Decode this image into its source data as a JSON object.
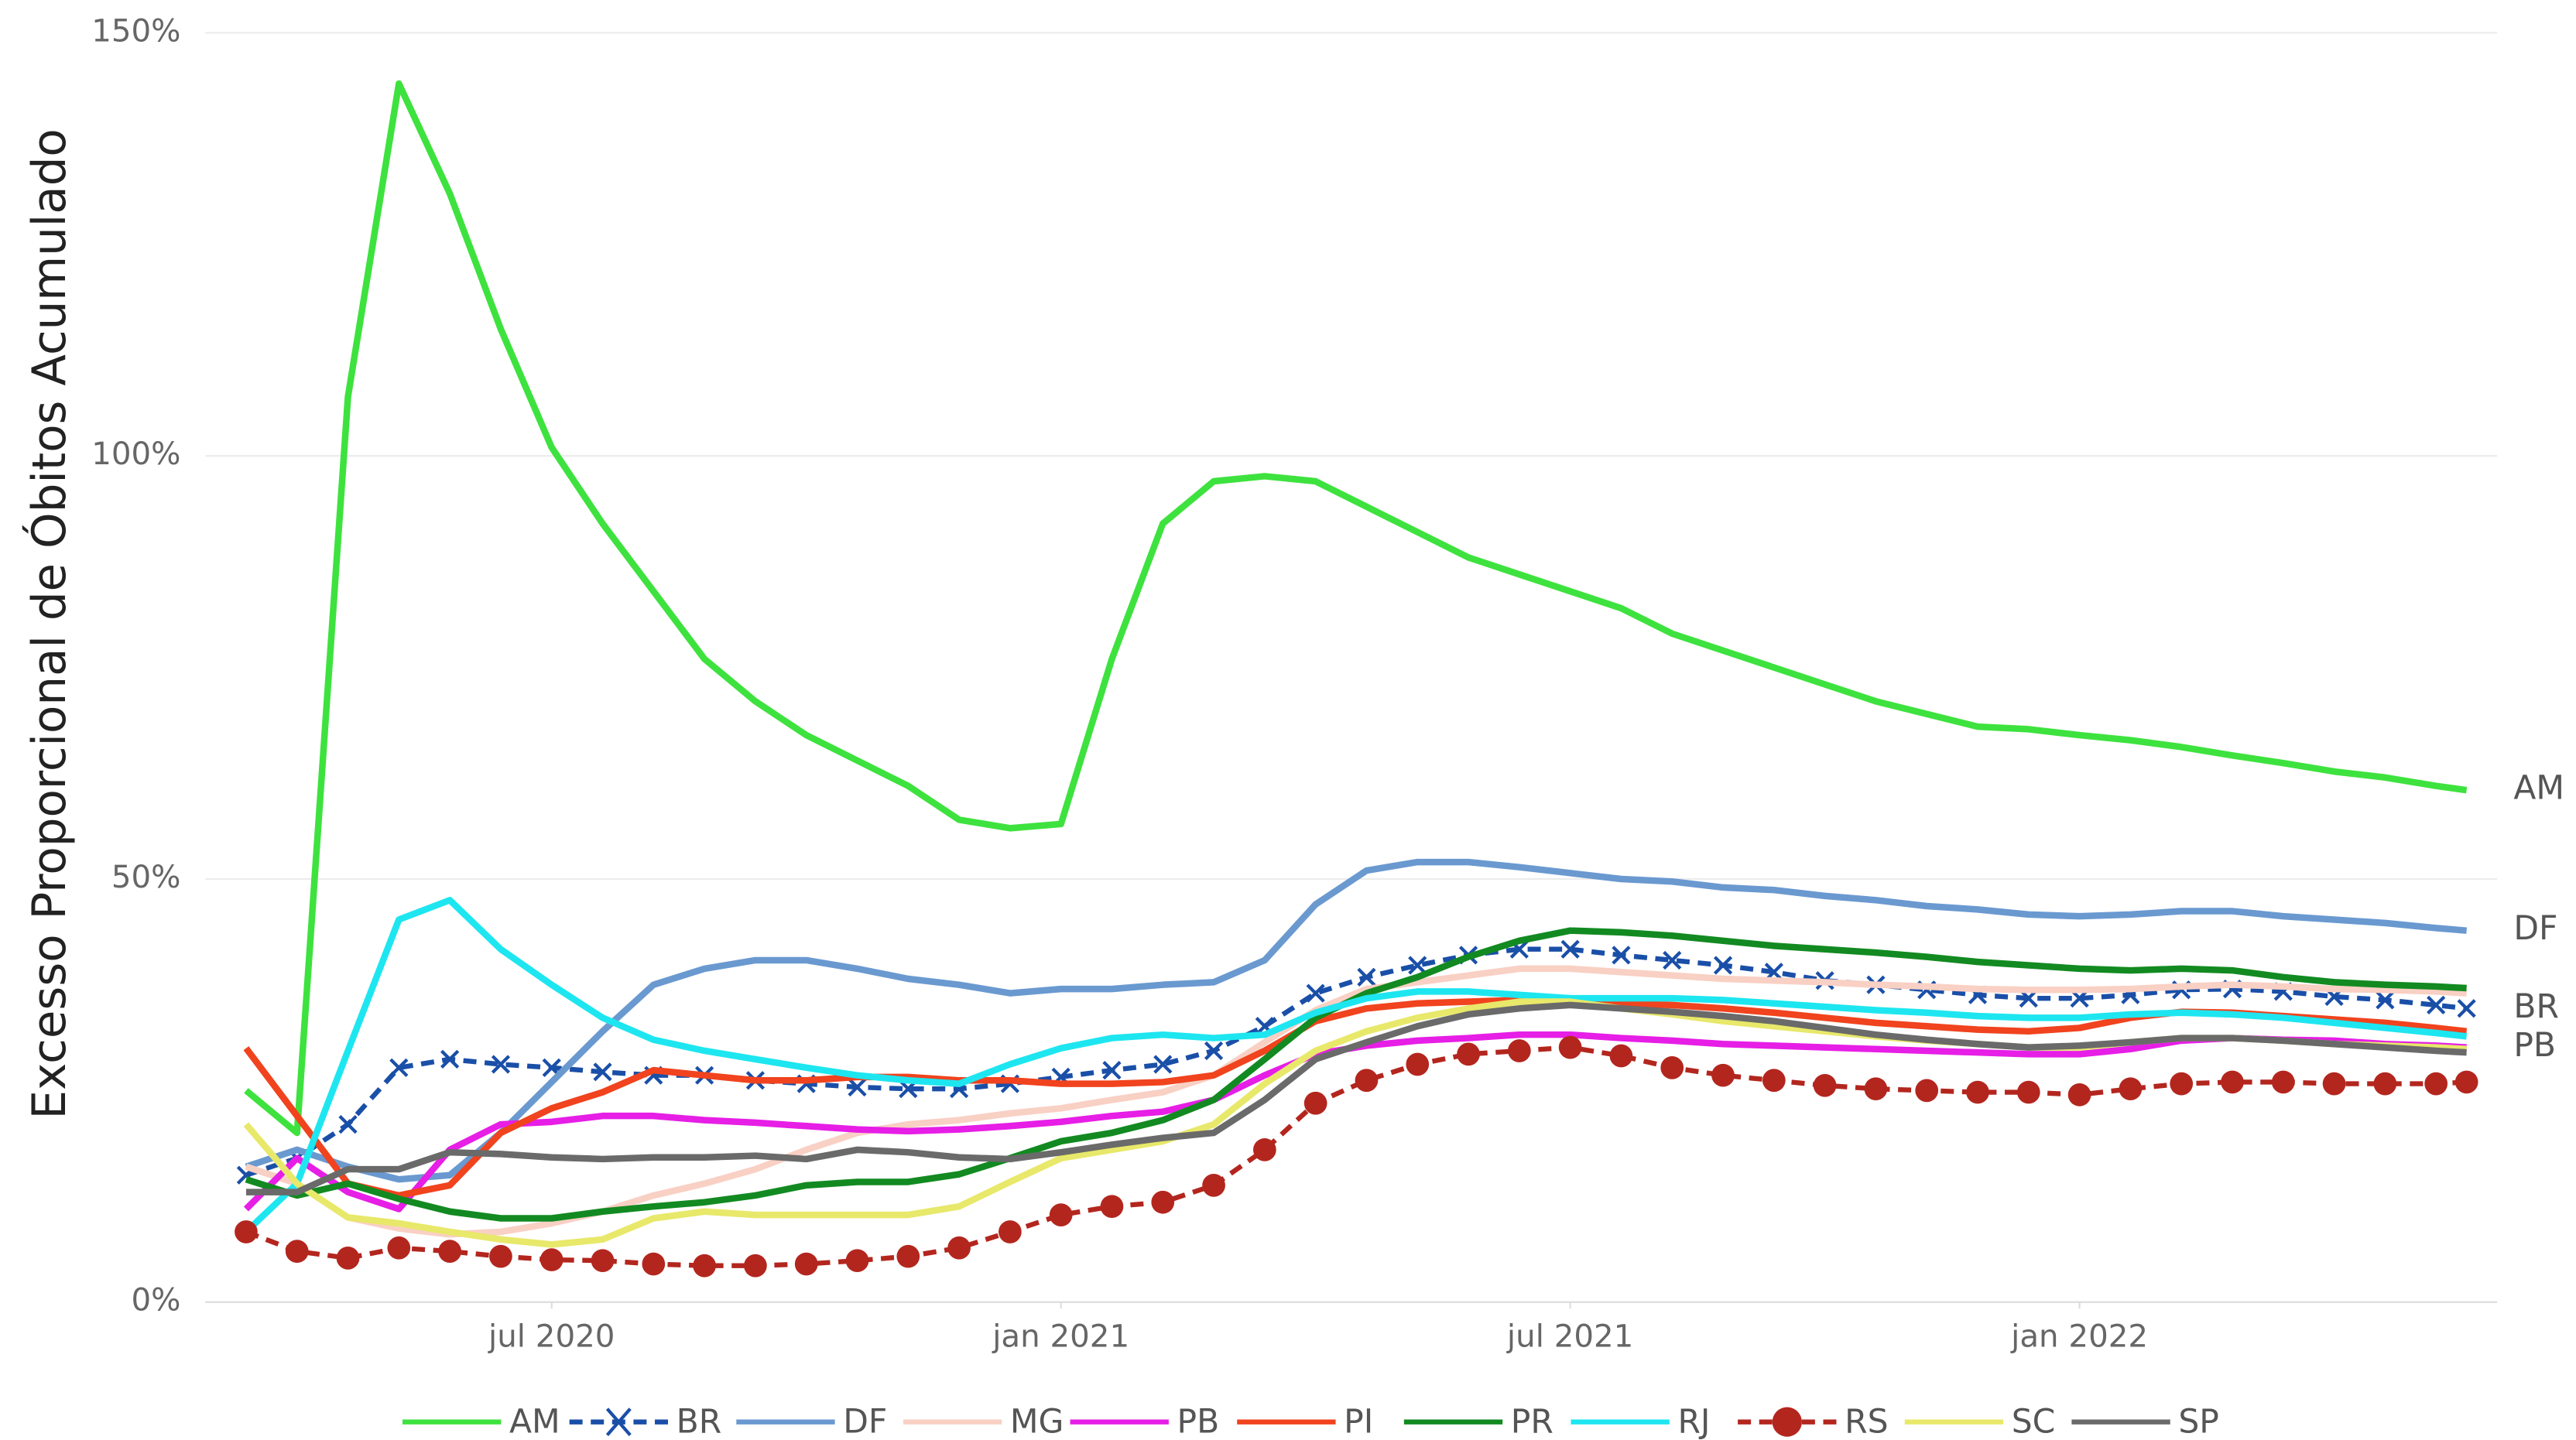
{
  "chart_data": {
    "type": "line",
    "ylabel": "Excesso Proporcional de Óbitos Acumulado",
    "xlim": [
      2020.16,
      2022.41
    ],
    "xticks": [
      {
        "value": 2020.5,
        "label": "jul 2020"
      },
      {
        "value": 2021.0,
        "label": "jan 2021"
      },
      {
        "value": 2021.5,
        "label": "jul 2021"
      },
      {
        "value": 2022.0,
        "label": "jan 2022"
      }
    ],
    "ylim": [
      0,
      150
    ],
    "yticks": [
      {
        "value": 0,
        "label": "0%"
      },
      {
        "value": 50,
        "label": "50%"
      },
      {
        "value": 100,
        "label": "100%"
      },
      {
        "value": 150,
        "label": "150%"
      }
    ],
    "grid": true,
    "legend": "bottom",
    "x": [
      2020.2,
      2020.25,
      2020.3,
      2020.35,
      2020.4,
      2020.45,
      2020.5,
      2020.55,
      2020.6,
      2020.65,
      2020.7,
      2020.75,
      2020.8,
      2020.85,
      2020.9,
      2020.95,
      2021.0,
      2021.05,
      2021.1,
      2021.15,
      2021.2,
      2021.25,
      2021.3,
      2021.35,
      2021.4,
      2021.45,
      2021.5,
      2021.55,
      2021.6,
      2021.65,
      2021.7,
      2021.75,
      2021.8,
      2021.85,
      2021.9,
      2021.95,
      2022.0,
      2022.05,
      2022.1,
      2022.15,
      2022.2,
      2022.25,
      2022.3,
      2022.35,
      2022.38
    ],
    "series": [
      {
        "name": "AM",
        "color": "#3ee23e",
        "end_label": true,
        "values": [
          25,
          20,
          107,
          144,
          131,
          115,
          101,
          92,
          84,
          76,
          71,
          67,
          64,
          61,
          57,
          56,
          56.5,
          76,
          92,
          97,
          97.6,
          97,
          94,
          91,
          88,
          86,
          84,
          82,
          79,
          77,
          75,
          73,
          71,
          69.5,
          68,
          67.7,
          67,
          66.4,
          65.6,
          64.6,
          63.7,
          62.7,
          62,
          61,
          60.5
        ]
      },
      {
        "name": "BR",
        "color": "#1a4fa8",
        "dash": true,
        "marker": "x",
        "end_label": true,
        "values": [
          15,
          17,
          21,
          27.7,
          28.7,
          28.1,
          27.7,
          27.2,
          26.8,
          26.8,
          26.2,
          25.8,
          25.4,
          25.2,
          25.2,
          25.8,
          26.6,
          27.4,
          28.1,
          29.7,
          32.6,
          36.5,
          38.4,
          39.8,
          41,
          41.7,
          41.7,
          41,
          40.4,
          39.8,
          39,
          38,
          37.5,
          36.9,
          36.3,
          35.9,
          35.9,
          36.3,
          36.9,
          37,
          36.7,
          36.1,
          35.7,
          35.1,
          34.7
        ]
      },
      {
        "name": "DF",
        "color": "#6a99d0",
        "end_label": true,
        "values": [
          16,
          18,
          16,
          14.5,
          15,
          20,
          26,
          32,
          37.5,
          39.4,
          40.4,
          40.4,
          39.4,
          38.2,
          37.5,
          36.5,
          37,
          37,
          37.5,
          37.8,
          40.4,
          47,
          51,
          52,
          52,
          51.4,
          50.7,
          50,
          49.7,
          49,
          48.7,
          48,
          47.5,
          46.8,
          46.4,
          45.8,
          45.6,
          45.8,
          46.2,
          46.2,
          45.6,
          45.2,
          44.8,
          44.2,
          43.9
        ]
      },
      {
        "name": "MG",
        "color": "#f9d0c4",
        "values": [
          16,
          14,
          10,
          8.7,
          8,
          8.3,
          9.3,
          10.7,
          12.6,
          14,
          15.7,
          18,
          20,
          21,
          21.5,
          22.3,
          22.9,
          23.9,
          24.8,
          26.8,
          30.7,
          34.5,
          37,
          37.8,
          38.6,
          39.4,
          39.4,
          39,
          38.6,
          38.2,
          38,
          37.8,
          37.5,
          37.3,
          37,
          36.9,
          36.9,
          37,
          37.3,
          37.5,
          37.3,
          37,
          36.9,
          36.7,
          36.5
        ]
      },
      {
        "name": "PB",
        "color": "#e61ee6",
        "end_label": true,
        "values": [
          11,
          17,
          13,
          11,
          18,
          21,
          21.3,
          22,
          22,
          21.5,
          21.2,
          20.8,
          20.4,
          20.2,
          20.4,
          20.8,
          21.3,
          22,
          22.5,
          23.9,
          26.8,
          29.3,
          30.3,
          30.9,
          31.2,
          31.6,
          31.6,
          31.2,
          30.9,
          30.5,
          30.3,
          30.1,
          29.9,
          29.7,
          29.5,
          29.3,
          29.3,
          29.9,
          30.9,
          31.2,
          31,
          30.9,
          30.5,
          30.3,
          30.1
        ]
      },
      {
        "name": "PI",
        "color": "#f0431e",
        "values": [
          30,
          22,
          14,
          12.6,
          13.8,
          20,
          22.9,
          24.8,
          27.4,
          26.8,
          26.2,
          26.2,
          26.6,
          26.6,
          26.2,
          26.2,
          25.8,
          25.8,
          26,
          26.8,
          29.7,
          33.2,
          34.7,
          35.3,
          35.5,
          35.7,
          35.7,
          35.3,
          35.1,
          34.7,
          34.2,
          33.6,
          33,
          32.6,
          32.2,
          32,
          32.4,
          33.6,
          34.3,
          34.2,
          33.8,
          33.4,
          33,
          32.4,
          32
        ]
      },
      {
        "name": "PR",
        "color": "#128a21",
        "values": [
          14.5,
          12.6,
          14,
          12.2,
          10.7,
          9.9,
          9.9,
          10.7,
          11.3,
          11.8,
          12.6,
          13.8,
          14.2,
          14.2,
          15.1,
          17,
          19,
          20,
          21.5,
          23.9,
          28.7,
          33.6,
          36.5,
          38.4,
          40.8,
          42.7,
          43.9,
          43.7,
          43.3,
          42.7,
          42.1,
          41.7,
          41.3,
          40.8,
          40.2,
          39.8,
          39.4,
          39.2,
          39.4,
          39.2,
          38.4,
          37.8,
          37.5,
          37.3,
          37.1
        ]
      },
      {
        "name": "RJ",
        "color": "#1ee6f0",
        "values": [
          8.3,
          14,
          29.7,
          45.2,
          47.5,
          41.7,
          37.5,
          33.6,
          31,
          29.7,
          28.7,
          27.7,
          26.8,
          26.2,
          25.8,
          28.1,
          30,
          31.2,
          31.6,
          31.2,
          31.6,
          34.2,
          35.9,
          36.7,
          36.7,
          36.3,
          35.9,
          35.9,
          35.9,
          35.7,
          35.3,
          34.9,
          34.5,
          34.2,
          33.8,
          33.6,
          33.6,
          34,
          34.2,
          34,
          33.6,
          33,
          32.4,
          31.8,
          31.4
        ]
      },
      {
        "name": "RS",
        "color": "#b3261e",
        "dash": true,
        "marker": "circle",
        "values": [
          8.3,
          6,
          5.2,
          6.4,
          6,
          5.4,
          5,
          4.9,
          4.5,
          4.3,
          4.3,
          4.5,
          4.9,
          5.4,
          6.4,
          8.3,
          10.3,
          11.3,
          11.8,
          13.8,
          18,
          23.5,
          26.2,
          28.1,
          29.3,
          29.7,
          30.1,
          29.1,
          27.7,
          26.8,
          26.2,
          25.6,
          25.2,
          25,
          24.8,
          24.8,
          24.5,
          25.2,
          25.8,
          26,
          26,
          25.8,
          25.8,
          25.8,
          26
        ]
      },
      {
        "name": "SC",
        "color": "#e8e86a",
        "values": [
          21,
          14,
          10,
          9.3,
          8.3,
          7.4,
          6.8,
          7.4,
          9.9,
          10.7,
          10.3,
          10.3,
          10.3,
          10.3,
          11.3,
          14.2,
          17,
          18,
          19,
          21,
          25.8,
          29.7,
          32,
          33.6,
          34.7,
          35.5,
          35.5,
          34.7,
          34,
          33.2,
          32.6,
          32,
          31.4,
          30.9,
          30.5,
          30.1,
          30.1,
          30.7,
          31.2,
          31.2,
          30.9,
          30.5,
          30.3,
          30.1,
          29.9
        ]
      },
      {
        "name": "SP",
        "color": "#6a6a6a",
        "values": [
          13,
          13,
          15.7,
          15.7,
          17.7,
          17.5,
          17.1,
          16.9,
          17.1,
          17.1,
          17.3,
          16.9,
          18,
          17.7,
          17.1,
          16.9,
          17.7,
          18.6,
          19.4,
          20,
          23.9,
          28.7,
          30.7,
          32.6,
          34,
          34.7,
          35.1,
          34.7,
          34.3,
          33.8,
          33.2,
          32.4,
          31.6,
          31,
          30.5,
          30.1,
          30.3,
          30.7,
          31.2,
          31.2,
          30.9,
          30.5,
          30.1,
          29.7,
          29.5
        ]
      }
    ]
  }
}
